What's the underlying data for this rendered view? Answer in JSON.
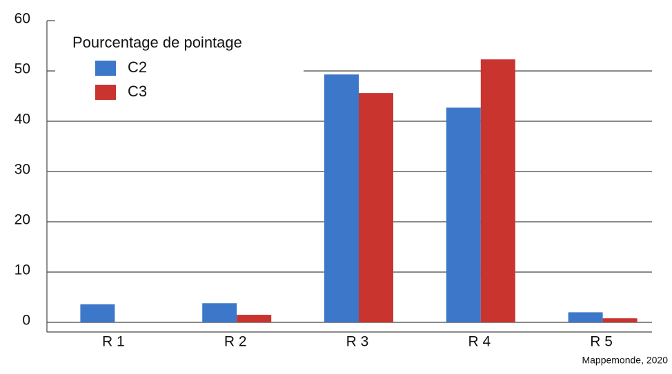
{
  "chart_data": {
    "type": "bar",
    "legend_title": "Pourcentage de pointage",
    "categories": [
      "R 1",
      "R 2",
      "R 3",
      "R 4",
      "R 5"
    ],
    "series": [
      {
        "name": "C2",
        "color": "#3d77c9",
        "values": [
          3.6,
          3.8,
          49.3,
          42.7,
          2.0
        ]
      },
      {
        "name": "C3",
        "color": "#c9342f",
        "values": [
          0,
          1.5,
          45.6,
          52.3,
          0.8
        ]
      }
    ],
    "ylim": [
      0,
      60
    ],
    "yticks": [
      0,
      10,
      20,
      30,
      40,
      50,
      60
    ],
    "grid": true,
    "legend": "upper left",
    "source": "Mappemonde, 2020"
  }
}
